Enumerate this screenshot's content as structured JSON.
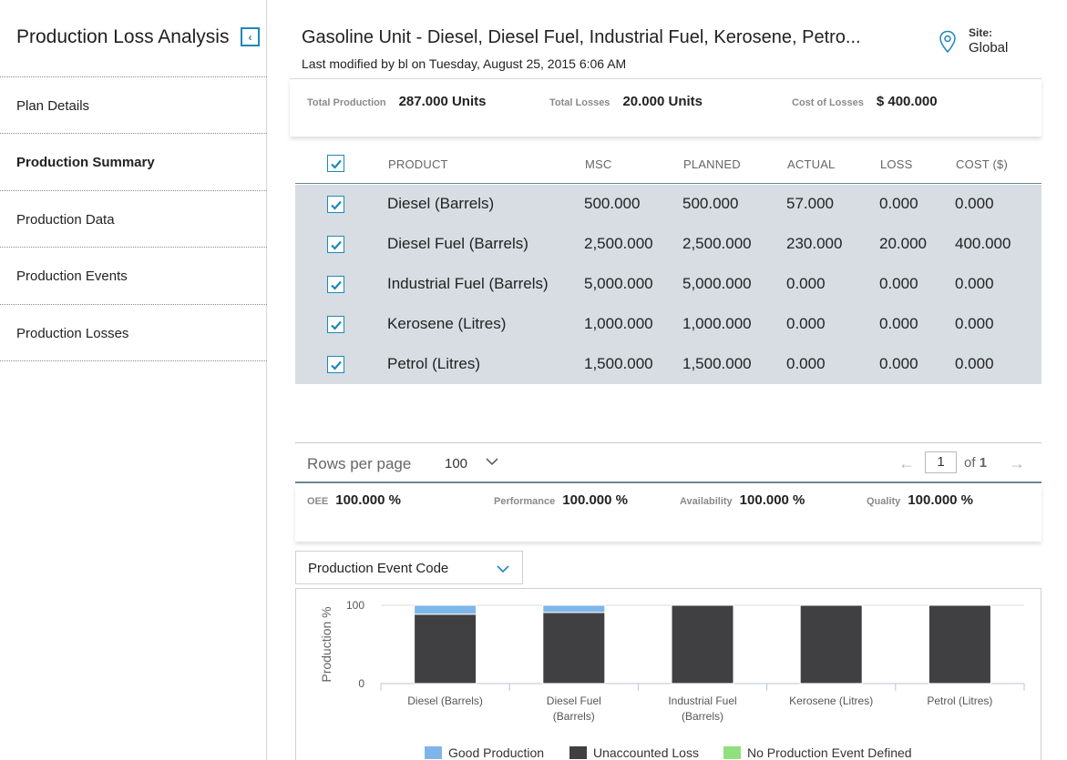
{
  "sidebar": {
    "title": "Production Loss Analysis",
    "items": [
      {
        "label": "Plan Details"
      },
      {
        "label": "Production Summary"
      },
      {
        "label": "Production Data"
      },
      {
        "label": "Production Events"
      },
      {
        "label": "Production Losses"
      }
    ]
  },
  "header": {
    "title": "Gasoline Unit - Diesel, Diesel Fuel, Industrial Fuel, Kerosene, Petro...",
    "modified": "Last modified by bl on Tuesday, August 25, 2015 6:06 AM",
    "site_label": "Site:",
    "site_value": "Global"
  },
  "summary": {
    "total_production_label": "Total Production",
    "total_production_value": "287.000 Units",
    "total_losses_label": "Total Losses",
    "total_losses_value": "20.000 Units",
    "cost_label": "Cost of Losses",
    "cost_value": "$ 400.000"
  },
  "table": {
    "headers": {
      "product": "PRODUCT",
      "msc": "MSC",
      "planned": "PLANNED",
      "actual": "ACTUAL",
      "loss": "LOSS",
      "cost": "COST ($)"
    },
    "rows": [
      {
        "product": "Diesel (Barrels)",
        "msc": "500.000",
        "planned": "500.000",
        "actual": "57.000",
        "loss": "0.000",
        "cost": "0.000",
        "checked": true
      },
      {
        "product": "Diesel Fuel (Barrels)",
        "msc": "2,500.000",
        "planned": "2,500.000",
        "actual": "230.000",
        "loss": "20.000",
        "cost": "400.000",
        "checked": true
      },
      {
        "product": "Industrial Fuel (Barrels)",
        "msc": "5,000.000",
        "planned": "5,000.000",
        "actual": "0.000",
        "loss": "0.000",
        "cost": "0.000",
        "checked": true
      },
      {
        "product": "Kerosene (Litres)",
        "msc": "1,000.000",
        "planned": "1,000.000",
        "actual": "0.000",
        "loss": "0.000",
        "cost": "0.000",
        "checked": true
      },
      {
        "product": "Petrol (Litres)",
        "msc": "1,500.000",
        "planned": "1,500.000",
        "actual": "0.000",
        "loss": "0.000",
        "cost": "0.000",
        "checked": true
      }
    ]
  },
  "pagination": {
    "rows_label": "Rows per page",
    "rows_value": "100",
    "page": "1",
    "of_label": "of",
    "total_pages": "1"
  },
  "oee": {
    "oee_label": "OEE",
    "oee_value": "100.000 %",
    "performance_label": "Performance",
    "performance_value": "100.000 %",
    "availability_label": "Availability",
    "availability_value": "100.000 %",
    "quality_label": "Quality",
    "quality_value": "100.000 %"
  },
  "dropdown": {
    "selected": "Production Event Code"
  },
  "colors": {
    "accent": "#1e88b8",
    "table_bg": "#d7dde3",
    "good": "#7fb6ea",
    "unaccounted": "#404043",
    "no_event": "#90e07f"
  },
  "chart_data": {
    "type": "bar",
    "stacked": true,
    "ylabel": "Production %",
    "ylim": [
      0,
      100
    ],
    "yticks": [
      0,
      100
    ],
    "categories": [
      "Diesel (Barrels)",
      "Diesel Fuel (Barrels)",
      "Industrial Fuel (Barrels)",
      "Kerosene (Litres)",
      "Petrol (Litres)"
    ],
    "series": [
      {
        "name": "Good Production",
        "color": "#7fb6ea",
        "values": [
          11.4,
          9.2,
          0,
          0,
          0
        ]
      },
      {
        "name": "Unaccounted Loss",
        "color": "#404043",
        "values": [
          88.6,
          90.8,
          100,
          100,
          100
        ]
      },
      {
        "name": "No Production Event Defined",
        "color": "#90e07f",
        "values": [
          0,
          0,
          0,
          0,
          0
        ]
      }
    ],
    "legend_position": "bottom"
  }
}
